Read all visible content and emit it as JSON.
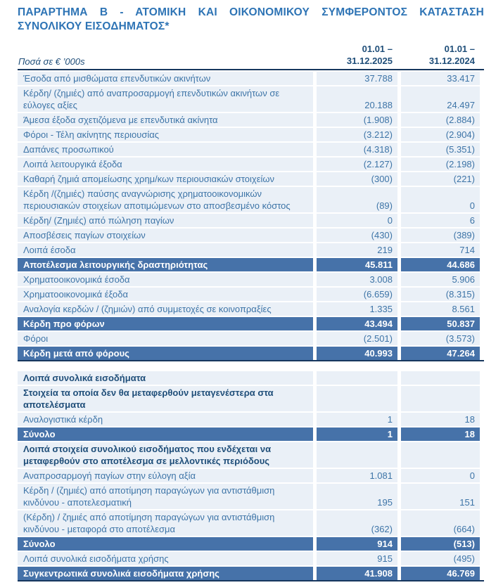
{
  "title": "ΠΑΡΑΡΤΗΜΑ Β - ΑΤΟΜΙΚΗ ΚΑΙ ΟΙΚΟΝΟΜΙΚΟΥ ΣΥΜΦΕΡΟΝΤΟΣ ΚΑΤΑΣΤΑΣΗ ΣΥΝΟΛΙΚΟΥ ΕΙΣΟΔΗΜΑΤΟΣ*",
  "colors": {
    "title_blue": "#2E74B5",
    "navy": "#1F4E79",
    "border_navy": "#17375E",
    "body_blue": "#3D74A7",
    "band_blue": "#4672A9",
    "row_bg": "#EAF0F7"
  },
  "table1": {
    "units_label": "Ποσά σε € ’000s",
    "col_headers": [
      {
        "line1": "01.01 –",
        "line2": "31.12.2025"
      },
      {
        "line1": "01.01 –",
        "line2": "31.12.2024"
      }
    ],
    "rows": [
      {
        "type": "data",
        "label": "Έσοδα από μισθώματα επενδυτικών ακινήτων",
        "v2025": "37.788",
        "v2024": "33.417"
      },
      {
        "type": "data",
        "label": "Κέρδη/ (ζημιές) από αναπροσαρμογή επενδυτικών ακινήτων σε εύλογες αξίες",
        "v2025": "20.188",
        "v2024": "24.497"
      },
      {
        "type": "data",
        "label": "Άμεσα έξοδα σχετιζόμενα με επενδυτικά ακίνητα",
        "v2025": "(1.908)",
        "v2024": "(2.884)"
      },
      {
        "type": "data",
        "label": "Φόροι - Τέλη ακίνητης περιουσίας",
        "v2025": "(3.212)",
        "v2024": "(2.904)"
      },
      {
        "type": "data",
        "label": "Δαπάνες προσωπικού",
        "v2025": "(4.318)",
        "v2024": "(5.351)"
      },
      {
        "type": "data",
        "label": "Λοιπά λειτουργικά έξοδα",
        "v2025": "(2.127)",
        "v2024": "(2.198)"
      },
      {
        "type": "data",
        "label": "Καθαρή ζημιά απομείωσης χρημ/κων περιουσιακών στοιχείων",
        "v2025": "(300)",
        "v2024": "(221)"
      },
      {
        "type": "data",
        "label": "Κέρδη /(ζημιές) παύσης αναγνώρισης χρηματοοικονομικών περιουσιακών στοιχείων αποτιμώμενων στο αποσβεσμένο κόστος",
        "v2025": "(89)",
        "v2024": "0"
      },
      {
        "type": "data",
        "label": "Κέρδη/ (Ζημιές) από πώληση παγίων",
        "v2025": "0",
        "v2024": "6"
      },
      {
        "type": "data",
        "label": "Αποσβέσεις παγίων στοιχείων",
        "v2025": "(430)",
        "v2024": "(389)"
      },
      {
        "type": "data",
        "label": "Λοιπά έσοδα",
        "v2025": "219",
        "v2024": "714"
      },
      {
        "type": "total",
        "label": "Αποτέλεσμα λειτουργικής δραστηριότητας",
        "v2025": "45.811",
        "v2024": "44.686"
      },
      {
        "type": "data",
        "label": "Χρηματοοικονομικά έσοδα",
        "v2025": "3.008",
        "v2024": "5.906"
      },
      {
        "type": "data",
        "label": "Χρηματοοικονομικά έξοδα",
        "v2025": "(6.659)",
        "v2024": "(8.315)"
      },
      {
        "type": "data",
        "label": "Αναλογία κερδών / (ζημιών) από συμμετοχές σε κοινοπραξίες",
        "v2025": "1.335",
        "v2024": "8.561"
      },
      {
        "type": "total",
        "label": "Κέρδη προ φόρων",
        "v2025": "43.494",
        "v2024": "50.837"
      },
      {
        "type": "data",
        "label": "Φόροι",
        "v2025": "(2.501)",
        "v2024": "(3.573)"
      },
      {
        "type": "total",
        "label": "Κέρδη μετά από φόρους",
        "v2025": "40.993",
        "v2024": "47.264"
      }
    ]
  },
  "table2": {
    "rows": [
      {
        "type": "section",
        "label": "Λοιπά συνολικά εισοδήματα",
        "v2025": "",
        "v2024": ""
      },
      {
        "type": "section",
        "label": "Στοιχεία τα οποία δεν θα μεταφερθούν μεταγενέστερα στα αποτελέσματα",
        "v2025": "",
        "v2024": ""
      },
      {
        "type": "data",
        "label": "Αναλογιστικά κέρδη",
        "v2025": "1",
        "v2024": "18"
      },
      {
        "type": "total",
        "label": "Σύνολο",
        "v2025": "1",
        "v2024": "18"
      },
      {
        "type": "section",
        "label": "Λοιπά στοιχεία συνολικού εισοδήματος που ενδέχεται να μεταφερθούν στο αποτέλεσμα σε μελλοντικές περιόδους",
        "v2025": "",
        "v2024": ""
      },
      {
        "type": "data",
        "label": "Αναπροσαρμογή παγίων στην εύλογη αξία",
        "v2025": "1.081",
        "v2024": "0"
      },
      {
        "type": "data",
        "label": "Κέρδη / (ζημιές) από αποτίμηση παραγώγων για αντιστάθμιση κινδύνου - αποτελεσματική",
        "v2025": "195",
        "v2024": "151"
      },
      {
        "type": "data",
        "label": "(Κέρδη) / ζημιές από αποτίμηση παραγώγων για αντιστάθμιση κινδύνου - μεταφορά στο αποτέλεσμα",
        "v2025": "(362)",
        "v2024": "(664)"
      },
      {
        "type": "total",
        "label": "Σύνολο",
        "v2025": "914",
        "v2024": "(513)"
      },
      {
        "type": "data",
        "label": "Λοιπά συνολικά εισοδήματα χρήσης",
        "v2025": "915",
        "v2024": "(495)"
      },
      {
        "type": "total",
        "label": "Συγκεντρωτικά συνολικά εισοδήματα χρήσης",
        "v2025": "41.908",
        "v2024": "46.769"
      }
    ]
  }
}
